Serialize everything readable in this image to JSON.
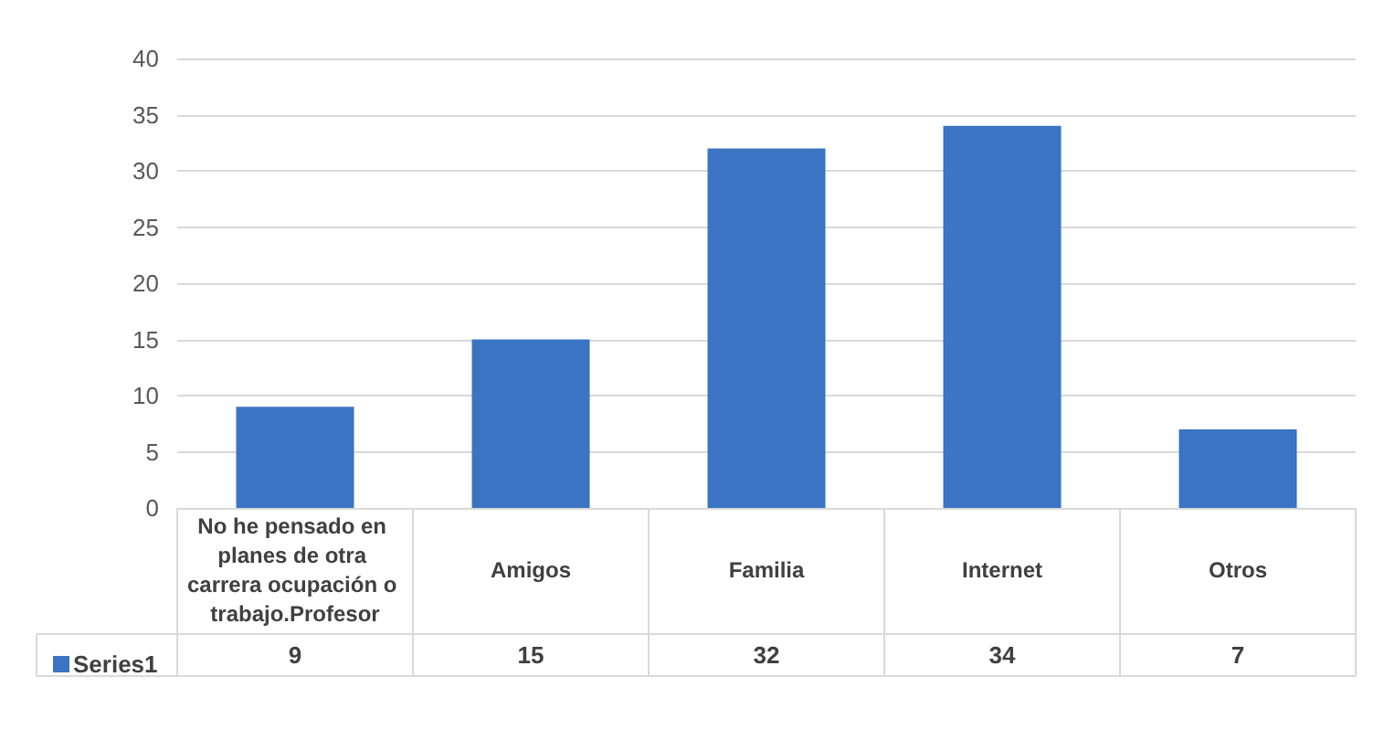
{
  "chart_data": {
    "type": "bar",
    "categories": [
      "No he pensado en planes de otra carrera ocupación o trabajo.Profesor",
      "Amigos",
      "Familia",
      "Internet",
      "Otros"
    ],
    "series": [
      {
        "name": "Series1",
        "color": "#3a74c2",
        "values": [
          9,
          15,
          32,
          34,
          7
        ]
      }
    ],
    "ylim": [
      0,
      40
    ],
    "yticks": [
      0,
      5,
      10,
      15,
      20,
      25,
      30,
      35,
      40
    ],
    "grid": "y",
    "legend": "bottom left",
    "data_labels": true
  }
}
